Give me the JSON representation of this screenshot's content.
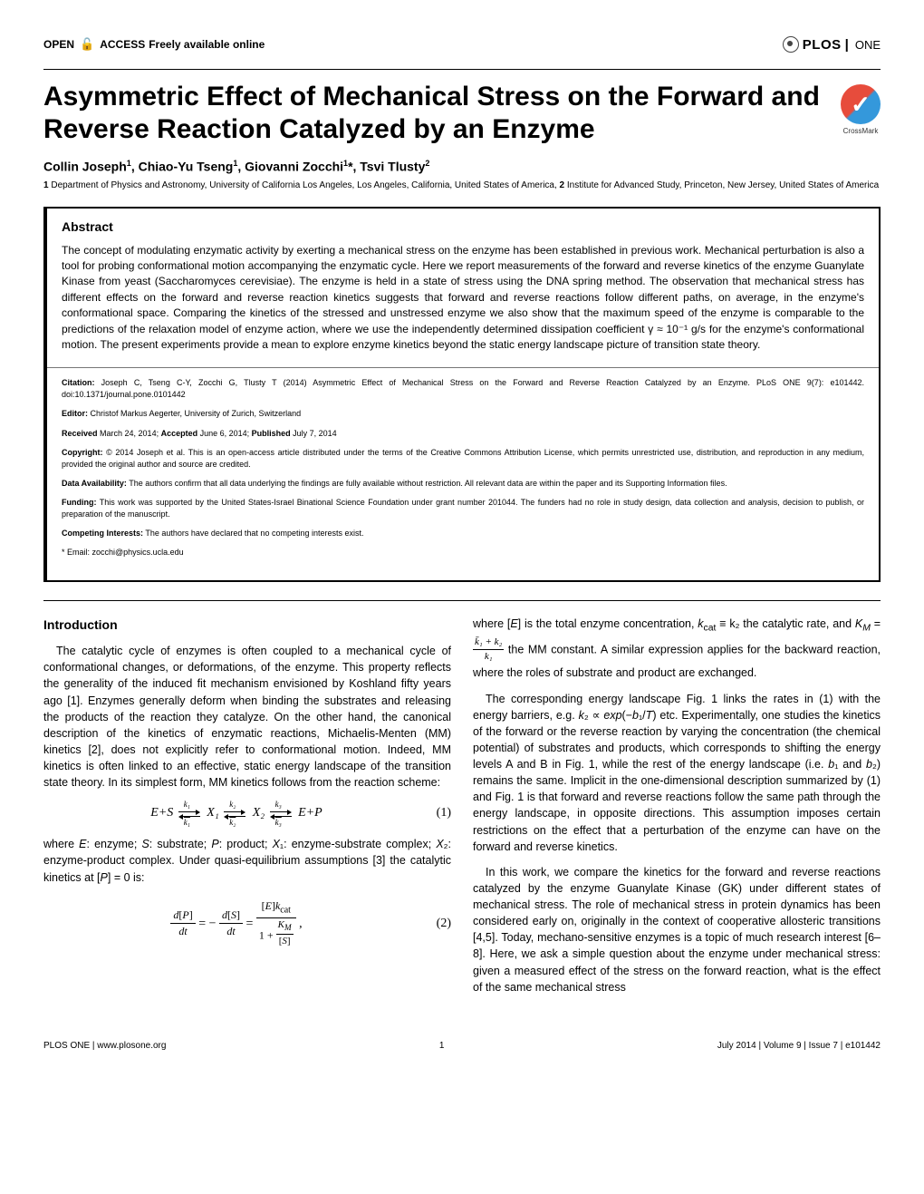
{
  "header": {
    "open": "OPEN",
    "access": "ACCESS",
    "freely": "Freely available online",
    "plos": "PLOS",
    "one": "ONE"
  },
  "title": "Asymmetric Effect of Mechanical Stress on the Forward and Reverse Reaction Catalyzed by an Enzyme",
  "crossmark": "CrossMark",
  "authors_html": "Collin Joseph<sup>1</sup>, Chiao-Yu Tseng<sup>1</sup>, Giovanni Zocchi<sup>1</sup>*, Tsvi Tlusty<sup>2</sup>",
  "affiliations_html": "<b>1</b> Department of Physics and Astronomy, University of California Los Angeles, Los Angeles, California, United States of America, <b>2</b> Institute for Advanced Study, Princeton, New Jersey, United States of America",
  "abstract": {
    "heading": "Abstract",
    "text": "The concept of modulating enzymatic activity by exerting a mechanical stress on the enzyme has been established in previous work. Mechanical perturbation is also a tool for probing conformational motion accompanying the enzymatic cycle. Here we report measurements of the forward and reverse kinetics of the enzyme Guanylate Kinase from yeast (Saccharomyces cerevisiae). The enzyme is held in a state of stress using the DNA spring method. The observation that mechanical stress has different effects on the forward and reverse reaction kinetics suggests that forward and reverse reactions follow different paths, on average, in the enzyme's conformational space. Comparing the kinetics of the stressed and unstressed enzyme we also show that the maximum speed of the enzyme is comparable to the predictions of the relaxation model of enzyme action, where we use the independently determined dissipation coefficient γ ≈ 10⁻¹ g/s for the enzyme's conformational motion. The present experiments provide a mean to explore enzyme kinetics beyond the static energy landscape picture of transition state theory.",
    "citation_label": "Citation:",
    "citation": " Joseph C, Tseng C-Y, Zocchi G, Tlusty T (2014) Asymmetric Effect of Mechanical Stress on the Forward and Reverse Reaction Catalyzed by an Enzyme. PLoS ONE 9(7): e101442. doi:10.1371/journal.pone.0101442",
    "editor_label": "Editor:",
    "editor": " Christof Markus Aegerter, University of Zurich, Switzerland",
    "dates_html": "<b>Received</b> March 24, 2014; <b>Accepted</b> June 6, 2014; <b>Published</b> July 7, 2014",
    "copyright_label": "Copyright:",
    "copyright": " © 2014 Joseph et al. This is an open-access article distributed under the terms of the Creative Commons Attribution License, which permits unrestricted use, distribution, and reproduction in any medium, provided the original author and source are credited.",
    "data_label": "Data Availability:",
    "data": " The authors confirm that all data underlying the findings are fully available without restriction. All relevant data are within the paper and its Supporting Information files.",
    "funding_label": "Funding:",
    "funding": " This work was supported by the United States-Israel Binational Science Foundation under grant number 201044. The funders had no role in study design, data collection and analysis, decision to publish, or preparation of the manuscript.",
    "competing_label": "Competing Interests:",
    "competing": " The authors have declared that no competing interests exist.",
    "email": "* Email: zocchi@physics.ucla.edu"
  },
  "body": {
    "intro_heading": "Introduction",
    "col1_p1": "The catalytic cycle of enzymes is often coupled to a mechanical cycle of conformational changes, or deformations, of the enzyme. This property reflects the generality of the induced fit mechanism envisioned by Koshland fifty years ago [1]. Enzymes generally deform when binding the substrates and releasing the products of the reaction they catalyze. On the other hand, the canonical description of the kinetics of enzymatic reactions, Michaelis-Menten (MM) kinetics [2], does not explicitly refer to conformational motion. Indeed, MM kinetics is often linked to an effective, static energy landscape of the transition state theory. In its simplest form, MM kinetics follows from the reaction scheme:",
    "eq1_species": [
      "E+S",
      "X₁",
      "X₂",
      "E+P"
    ],
    "eq1_rates_top": [
      "k₁",
      "k₂",
      "k₃"
    ],
    "eq1_rates_bot": [
      "k₁",
      "k₂",
      "k₃"
    ],
    "eq1_num": "(1)",
    "col1_p2_html": "where <span class='italic'>E</span>: enzyme; <span class='italic'>S</span>: substrate; <span class='italic'>P</span>: product; <span class='italic'>X</span>₁: enzyme-substrate complex; <span class='italic'>X</span>₂: enzyme-product complex. Under quasi-equilibrium assumptions [3] the catalytic kinetics at [<span class='italic'>P</span>] = 0 is:",
    "eq2_num": "(2)",
    "col2_p1_pre": "where [",
    "col2_p1_pre2": "] is the total enzyme concentration, ",
    "col2_p1_kcat": "k",
    "col2_p1_cat": "cat",
    "col2_p1_equiv": " ≡ k₂ the catalytic rate, and ",
    "col2_p1_km": "K",
    "col2_p1_m": "M",
    "col2_p1_eq": " = ",
    "col2_p1_frac_n": "k̄₁ + k₂",
    "col2_p1_frac_d": "k₁",
    "col2_p1_post": " the MM constant. A similar expression applies for the backward reaction, where the roles of substrate and product are exchanged.",
    "col2_p2_html": "The corresponding energy landscape Fig. 1 links the rates in (1) with the energy barriers, e.g. <span class='italic'>k</span>₂ ∝ <span class='italic'>exp</span>(−<span class='italic'>b</span>₁/<span class='italic'>T</span>) etc. Experimentally, one studies the kinetics of the forward or the reverse reaction by varying the concentration (the chemical potential) of substrates and products, which corresponds to shifting the energy levels A and B in Fig. 1, while the rest of the energy landscape (i.e. <span class='italic'>b</span>₁ and <span class='italic'>b</span>₂) remains the same. Implicit in the one-dimensional description summarized by (1) and Fig. 1 is that forward and reverse reactions follow the same path through the energy landscape, in opposite directions. This assumption imposes certain restrictions on the effect that a perturbation of the enzyme can have on the forward and reverse kinetics.",
    "col2_p3": "In this work, we compare the kinetics for the forward and reverse reactions catalyzed by the enzyme Guanylate Kinase (GK) under different states of mechanical stress. The role of mechanical stress in protein dynamics has been considered early on, originally in the context of cooperative allosteric transitions [4,5]. Today, mechano-sensitive enzymes is a topic of much research interest [6–8]. Here, we ask a simple question about the enzyme under mechanical stress: given a measured effect of the stress on the forward reaction, what is the effect of the same mechanical stress"
  },
  "footer": {
    "left": "PLOS ONE | www.plosone.org",
    "mid": "1",
    "right": "July 2014 | Volume 9 | Issue 7 | e101442"
  }
}
